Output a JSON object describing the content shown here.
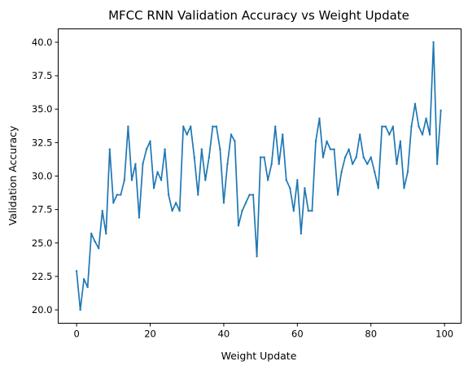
{
  "chart_data": {
    "type": "line",
    "title": "MFCC RNN Validation Accuracy vs Weight Update",
    "xlabel": "Weight Update",
    "ylabel": "Validation Accuracy",
    "xlim": [
      -5,
      104.5
    ],
    "ylim": [
      19.0,
      41.0
    ],
    "xticks": [
      0,
      20,
      40,
      60,
      80,
      100
    ],
    "yticks": [
      20.0,
      22.5,
      25.0,
      27.5,
      30.0,
      32.5,
      35.0,
      37.5,
      40.0
    ],
    "xtick_labels": [
      "0",
      "20",
      "40",
      "60",
      "80",
      "100"
    ],
    "ytick_labels": [
      "20.0",
      "22.5",
      "25.0",
      "27.5",
      "30.0",
      "32.5",
      "35.0",
      "37.5",
      "40.0"
    ],
    "grid": false,
    "legend": "none",
    "series": [
      {
        "color": "#1f77b4",
        "x": [
          0,
          1,
          2,
          3,
          4,
          5,
          6,
          7,
          8,
          9,
          10,
          11,
          12,
          13,
          14,
          15,
          16,
          17,
          18,
          19,
          20,
          21,
          22,
          23,
          24,
          25,
          26,
          27,
          28,
          29,
          30,
          31,
          32,
          33,
          34,
          35,
          36,
          37,
          38,
          39,
          40,
          41,
          42,
          43,
          44,
          45,
          46,
          47,
          48,
          49,
          50,
          51,
          52,
          53,
          54,
          55,
          56,
          57,
          58,
          59,
          60,
          61,
          62,
          63,
          64,
          65,
          66,
          67,
          68,
          69,
          70,
          71,
          72,
          73,
          74,
          75,
          76,
          77,
          78,
          79,
          80,
          81,
          82,
          83,
          84,
          85,
          86,
          87,
          88,
          89,
          90,
          91,
          92,
          93,
          94,
          95,
          96,
          97,
          98,
          99
        ],
        "values": [
          22.9,
          20.0,
          22.3,
          21.7,
          25.7,
          25.1,
          24.6,
          27.4,
          25.7,
          32.0,
          28.0,
          28.6,
          28.6,
          29.7,
          33.7,
          29.7,
          30.9,
          26.9,
          30.9,
          32.0,
          32.6,
          29.1,
          30.3,
          29.7,
          32.0,
          28.6,
          27.4,
          28.0,
          27.4,
          33.7,
          33.1,
          33.7,
          31.4,
          28.6,
          32.0,
          29.7,
          31.4,
          33.7,
          33.7,
          32.0,
          28.0,
          30.9,
          33.1,
          32.6,
          26.3,
          27.4,
          28.0,
          28.6,
          28.6,
          24.0,
          31.4,
          31.4,
          29.7,
          30.9,
          33.7,
          30.9,
          33.1,
          29.7,
          29.1,
          27.4,
          29.7,
          25.7,
          29.1,
          27.4,
          27.4,
          32.6,
          34.3,
          31.4,
          32.6,
          32.0,
          32.0,
          28.6,
          30.3,
          31.4,
          32.0,
          30.9,
          31.4,
          33.1,
          31.4,
          30.9,
          31.4,
          30.3,
          29.1,
          33.7,
          33.7,
          33.1,
          33.7,
          30.9,
          32.6,
          29.1,
          30.3,
          33.7,
          35.4,
          33.7,
          33.1,
          34.3,
          33.1,
          40.0,
          30.9,
          34.9
        ]
      }
    ]
  }
}
